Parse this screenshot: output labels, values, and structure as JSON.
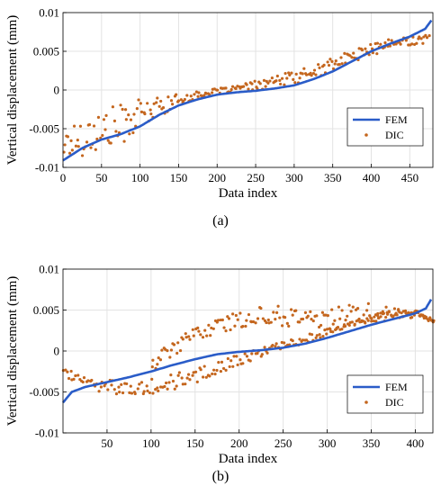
{
  "chart_data": [
    {
      "type": "scatter",
      "panel_label": "(a)",
      "xlabel": "Data index",
      "ylabel": "Vertical displacement (mm)",
      "xlim": [
        0,
        480
      ],
      "ylim": [
        -0.01,
        0.01
      ],
      "x_ticks": [
        0,
        50,
        100,
        150,
        200,
        250,
        300,
        350,
        400,
        450
      ],
      "y_ticks": [
        -0.01,
        -0.005,
        0,
        0.005,
        0.01
      ],
      "y_tick_labels": [
        "-0.01",
        "-0.005",
        "0",
        "0.005",
        "0.01"
      ],
      "grid": true,
      "legend_position": "right, lower-middle",
      "fem_curve": {
        "x": [
          0,
          25,
          50,
          75,
          100,
          125,
          150,
          175,
          200,
          225,
          250,
          275,
          300,
          325,
          350,
          375,
          400,
          425,
          450,
          470,
          478
        ],
        "y": [
          -0.0091,
          -0.0075,
          -0.0064,
          -0.0057,
          -0.0047,
          -0.0032,
          -0.002,
          -0.0012,
          -0.0006,
          -0.0003,
          -0.0001,
          0.0002,
          0.0006,
          0.0014,
          0.0024,
          0.0037,
          0.005,
          0.006,
          0.0069,
          0.0079,
          0.009
        ]
      },
      "dic_band": {
        "x": [
          0,
          25,
          50,
          75,
          100,
          125,
          150,
          175,
          200,
          225,
          250,
          275,
          300,
          325,
          350,
          375,
          400,
          425,
          450,
          475
        ],
        "lower": [
          -0.009,
          -0.0085,
          -0.0082,
          -0.007,
          -0.0052,
          -0.0035,
          -0.002,
          -0.001,
          -0.0005,
          -0.0002,
          0.0,
          0.0003,
          0.0008,
          0.0015,
          0.0025,
          0.0036,
          0.0045,
          0.0052,
          0.0058,
          0.006
        ],
        "upper": [
          -0.005,
          -0.0035,
          -0.0025,
          -0.0018,
          -0.0012,
          -0.0008,
          -0.0005,
          -0.0002,
          0.0002,
          0.0006,
          0.0012,
          0.0018,
          0.0025,
          0.0032,
          0.0042,
          0.0052,
          0.006,
          0.0066,
          0.007,
          0.0072
        ]
      },
      "series": [
        {
          "name": "FEM",
          "color": "#2a5cc8"
        },
        {
          "name": "DIC",
          "color": "#c4661e"
        }
      ]
    },
    {
      "type": "scatter",
      "panel_label": "(b)",
      "xlabel": "Data index",
      "ylabel": "Vertical displacement (mm)",
      "xlim": [
        0,
        420
      ],
      "ylim": [
        -0.01,
        0.01
      ],
      "x_ticks": [
        50,
        100,
        150,
        200,
        250,
        300,
        350,
        400
      ],
      "y_ticks": [
        -0.01,
        -0.005,
        0,
        0.005,
        0.01
      ],
      "y_tick_labels": [
        "-0.01",
        "-0.005",
        "0",
        "0.005",
        "0.01"
      ],
      "grid": true,
      "legend_position": "right, lower-middle",
      "fem_curve": {
        "x": [
          0,
          10,
          25,
          50,
          75,
          100,
          125,
          150,
          175,
          200,
          225,
          250,
          275,
          300,
          325,
          350,
          375,
          400,
          412,
          418
        ],
        "y": [
          -0.0063,
          -0.005,
          -0.0044,
          -0.0038,
          -0.0032,
          -0.0025,
          -0.0017,
          -0.001,
          -0.0004,
          -0.0001,
          0.0001,
          0.0004,
          0.0009,
          0.0016,
          0.0024,
          0.0032,
          0.0039,
          0.0046,
          0.0052,
          0.0063
        ]
      },
      "dic_upper_band": {
        "x": [
          100,
          125,
          150,
          175,
          200,
          225,
          250,
          275,
          300,
          325,
          350,
          375,
          400,
          420
        ],
        "lower": [
          -0.0025,
          -0.0005,
          0.0012,
          0.0022,
          0.0028,
          0.0032,
          0.003,
          0.0028,
          0.0026,
          0.003,
          0.0035,
          0.0038,
          0.004,
          0.0035
        ],
        "upper": [
          -0.0005,
          0.0012,
          0.003,
          0.004,
          0.0048,
          0.0055,
          0.0056,
          0.0052,
          0.0052,
          0.0057,
          0.0058,
          0.0052,
          0.0048,
          0.0038
        ]
      },
      "dic_lower_band": {
        "x": [
          0,
          25,
          50,
          75,
          100,
          125,
          150,
          175,
          200,
          225,
          250,
          275,
          300,
          325,
          350,
          375,
          400,
          420
        ],
        "lower": [
          -0.003,
          -0.0045,
          -0.0052,
          -0.0053,
          -0.0052,
          -0.0048,
          -0.004,
          -0.0028,
          -0.0018,
          -0.0008,
          0.0002,
          0.001,
          0.0018,
          0.0028,
          0.0035,
          0.0042,
          0.0045,
          0.0035
        ],
        "upper": [
          -0.0022,
          -0.003,
          -0.0034,
          -0.0036,
          -0.0032,
          -0.0028,
          -0.002,
          -0.0012,
          -0.0004,
          0.0004,
          0.0012,
          0.002,
          0.0028,
          0.0036,
          0.0044,
          0.005,
          0.005,
          0.004
        ]
      },
      "series": [
        {
          "name": "FEM",
          "color": "#2a5cc8"
        },
        {
          "name": "DIC",
          "color": "#c4661e"
        }
      ]
    }
  ]
}
